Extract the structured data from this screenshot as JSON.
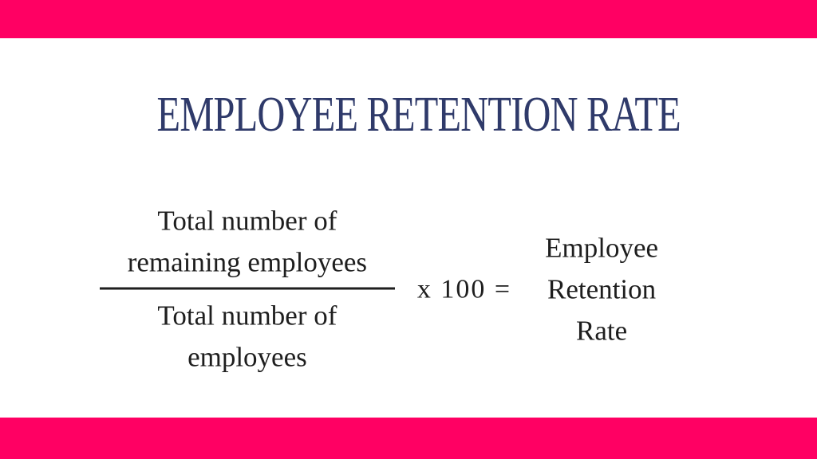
{
  "colors": {
    "accent": "#ff0063",
    "title": "#2f3a6a",
    "text": "#1e1e1e",
    "background": "#ffffff"
  },
  "title": "EMPLOYEE RETENTION RATE",
  "formula": {
    "numerator": [
      "Total number of",
      "remaining employees"
    ],
    "denominator": [
      "Total number of",
      "employees"
    ],
    "operator": "x 100 =",
    "result": [
      "Employee",
      "Retention",
      "Rate"
    ]
  }
}
